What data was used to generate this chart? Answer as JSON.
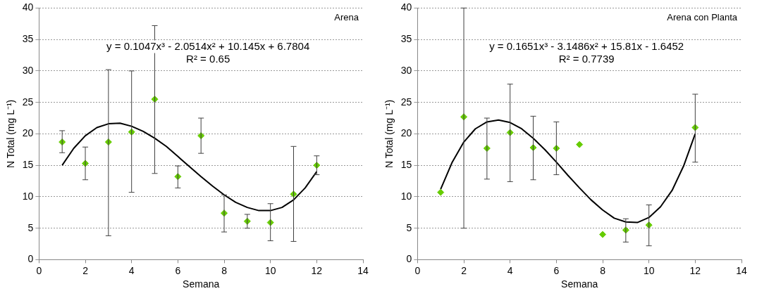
{
  "chart_data": [
    {
      "type": "scatter",
      "title": "Arena",
      "xlabel": "Semana",
      "ylabel": "N Total (mg L⁻¹)",
      "xlim": [
        0,
        14
      ],
      "xticks": [
        0,
        2,
        4,
        6,
        8,
        10,
        12,
        14
      ],
      "ylim": [
        0,
        40
      ],
      "yticks": [
        0,
        5,
        10,
        15,
        20,
        25,
        30,
        35,
        40
      ],
      "grid": "y",
      "legend": false,
      "marker": "diamond",
      "annotations": [
        "y = 0.1047x³ - 2.0514x² + 10.145x + 6.7804",
        "R² = 0.65"
      ],
      "series": [
        {
          "color": "#66cc00",
          "x": [
            1,
            2,
            3,
            4,
            5,
            6,
            7,
            8,
            9,
            10,
            11,
            12
          ],
          "values": [
            18.7,
            15.3,
            18.7,
            20.3,
            25.5,
            13.2,
            19.7,
            7.4,
            6.1,
            5.9,
            10.4,
            15
          ],
          "errors": [
            [
              17,
              20.5
            ],
            [
              12.7,
              17.9
            ],
            [
              3.8,
              30.2
            ],
            [
              10.7,
              30
            ],
            [
              13.7,
              37.2
            ],
            [
              11.4,
              14.9
            ],
            [
              16.9,
              22.5
            ],
            [
              4.4,
              10.3
            ],
            [
              5,
              7.2
            ],
            [
              3,
              8.9
            ],
            [
              2.9,
              18
            ],
            [
              13.5,
              16.5
            ]
          ]
        },
        {
          "type": "line",
          "color": "#000000",
          "marker": "none",
          "x": [
            1,
            1.5,
            2,
            2.5,
            3,
            3.5,
            4,
            4.5,
            5,
            5.5,
            6,
            6.5,
            7,
            7.5,
            8,
            8.5,
            9,
            9.5,
            10,
            10.5,
            11,
            11.5,
            12
          ],
          "values": [
            15,
            17.7,
            19.7,
            21,
            21.6,
            21.7,
            21.2,
            20.4,
            19.3,
            18,
            16.4,
            14.8,
            13.2,
            11.7,
            10.3,
            9.1,
            8.3,
            7.8,
            7.8,
            8.3,
            9.5,
            11.4,
            14
          ]
        }
      ]
    },
    {
      "type": "scatter",
      "title": "Arena con Planta",
      "xlabel": "Semana",
      "ylabel": "N Total (mg L⁻¹)",
      "xlim": [
        0,
        14
      ],
      "xticks": [
        0,
        2,
        4,
        6,
        8,
        10,
        12,
        14
      ],
      "ylim": [
        0,
        40
      ],
      "yticks": [
        0,
        5,
        10,
        15,
        20,
        25,
        30,
        35,
        40
      ],
      "grid": "y",
      "legend": false,
      "marker": "diamond",
      "annotations": [
        "y = 0.1651x³ - 3.1486x² + 15.81x - 1.6452",
        "R² = 0.7739"
      ],
      "series": [
        {
          "color": "#66cc00",
          "x": [
            1,
            2,
            3,
            4,
            5,
            6,
            7,
            8,
            9,
            10,
            12
          ],
          "values": [
            10.7,
            22.7,
            17.7,
            20.2,
            17.8,
            17.7,
            18.3,
            4,
            4.7,
            5.5,
            21
          ],
          "errors": [
            null,
            [
              5,
              40
            ],
            [
              12.8,
              22.5
            ],
            [
              12.4,
              27.9
            ],
            [
              12.7,
              22.8
            ],
            [
              13.5,
              21.9
            ],
            null,
            null,
            [
              2.8,
              6.5
            ],
            [
              2.2,
              8.7
            ],
            [
              15.5,
              26.3
            ]
          ]
        },
        {
          "type": "line",
          "color": "#000000",
          "marker": "none",
          "x": [
            1,
            1.5,
            2,
            2.5,
            3,
            3.5,
            4,
            4.5,
            5,
            5.5,
            6,
            6.5,
            7,
            7.5,
            8,
            8.5,
            9,
            9.5,
            10,
            10.5,
            11,
            11.5,
            12
          ],
          "values": [
            11.2,
            15.5,
            18.7,
            20.8,
            21.9,
            22.2,
            21.8,
            20.8,
            19.3,
            17.5,
            15.5,
            13.4,
            11.4,
            9.5,
            7.9,
            6.6,
            6,
            5.9,
            6.7,
            8.4,
            11,
            14.9,
            20
          ]
        }
      ]
    }
  ]
}
